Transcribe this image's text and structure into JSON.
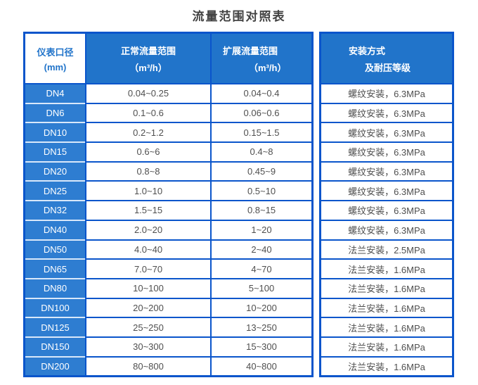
{
  "title": "流量范围对照表",
  "colors": {
    "border_blue": "#0a55cb",
    "header_blue": "#2174ca",
    "dn_column_blue": "#2e7dd1",
    "first_header_bg": "#ffffff",
    "first_header_text": "#2174ca",
    "data_text": "#4f4f4f",
    "dn_separator": "#d9e8fa"
  },
  "chart_data": {
    "type": "table",
    "title": "流量范围对照表",
    "columns": [
      {
        "line1": "仪表口径",
        "line2": "(mm)"
      },
      {
        "line1": "正常流量范围",
        "line2": "（m³/h）"
      },
      {
        "line1": "扩展流量范围",
        "line2": "（m³/h）"
      },
      {
        "line1": "安装方式",
        "line2": "及耐压等级"
      }
    ],
    "rows": [
      {
        "dn": "DN4",
        "normal": "0.04~0.25",
        "extended": "0.04~0.4",
        "install": "螺纹安装，6.3MPa"
      },
      {
        "dn": "DN6",
        "normal": "0.1~0.6",
        "extended": "0.06~0.6",
        "install": "螺纹安装，6.3MPa"
      },
      {
        "dn": "DN10",
        "normal": "0.2~1.2",
        "extended": "0.15~1.5",
        "install": "螺纹安装，6.3MPa"
      },
      {
        "dn": "DN15",
        "normal": "0.6~6",
        "extended": "0.4~8",
        "install": "螺纹安装，6.3MPa"
      },
      {
        "dn": "DN20",
        "normal": "0.8~8",
        "extended": "0.45~9",
        "install": "螺纹安装，6.3MPa"
      },
      {
        "dn": "DN25",
        "normal": "1.0~10",
        "extended": "0.5~10",
        "install": "螺纹安装，6.3MPa"
      },
      {
        "dn": "DN32",
        "normal": "1.5~15",
        "extended": "0.8~15",
        "install": "螺纹安装，6.3MPa"
      },
      {
        "dn": "DN40",
        "normal": "2.0~20",
        "extended": "1~20",
        "install": "螺纹安装，6.3MPa"
      },
      {
        "dn": "DN50",
        "normal": "4.0~40",
        "extended": "2~40",
        "install": "法兰安装，2.5MPa"
      },
      {
        "dn": "DN65",
        "normal": "7.0~70",
        "extended": "4~70",
        "install": "法兰安装，1.6MPa"
      },
      {
        "dn": "DN80",
        "normal": "10~100",
        "extended": "5~100",
        "install": "法兰安装，1.6MPa"
      },
      {
        "dn": "DN100",
        "normal": "20~200",
        "extended": "10~200",
        "install": "法兰安装，1.6MPa"
      },
      {
        "dn": "DN125",
        "normal": "25~250",
        "extended": "13~250",
        "install": "法兰安装，1.6MPa"
      },
      {
        "dn": "DN150",
        "normal": "30~300",
        "extended": "15~300",
        "install": "法兰安装，1.6MPa"
      },
      {
        "dn": "DN200",
        "normal": "80~800",
        "extended": "40~800",
        "install": "法兰安装，1.6MPa"
      }
    ]
  }
}
